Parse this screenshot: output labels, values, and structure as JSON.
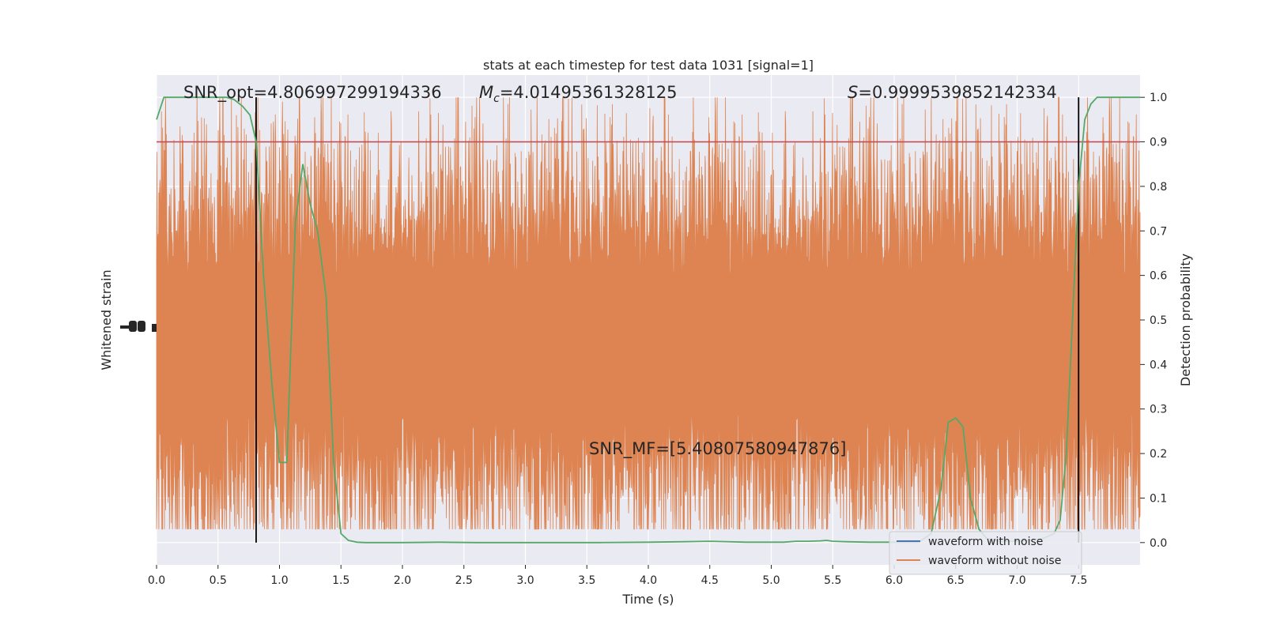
{
  "chart_data": {
    "type": "line",
    "title": "stats at each timestep for test data 1031 [signal=1]",
    "xlabel": "Time (s)",
    "ylabel_left": "Whitened strain",
    "ylabel_right": "Detection probability",
    "xlim": [
      0.0,
      8.0
    ],
    "ylim_right": [
      -0.05,
      1.05
    ],
    "x_ticks": [
      "0.0",
      "0.5",
      "1.0",
      "1.5",
      "2.0",
      "2.5",
      "3.0",
      "3.5",
      "4.0",
      "4.5",
      "5.0",
      "5.5",
      "6.0",
      "6.5",
      "7.0",
      "7.5"
    ],
    "x_tick_values": [
      0.0,
      0.5,
      1.0,
      1.5,
      2.0,
      2.5,
      3.0,
      3.5,
      4.0,
      4.5,
      5.0,
      5.5,
      6.0,
      6.5,
      7.0,
      7.5
    ],
    "y_ticks_right": [
      "0.0",
      "0.1",
      "0.2",
      "0.3",
      "0.4",
      "0.5",
      "0.6",
      "0.7",
      "0.8",
      "0.9",
      "1.0"
    ],
    "y_tick_values_right": [
      0.0,
      0.1,
      0.2,
      0.3,
      0.4,
      0.5,
      0.6,
      0.7,
      0.8,
      0.9,
      1.0
    ],
    "grid": true,
    "legend_position": "lower-right",
    "annotations": {
      "snr_opt": "SNR_opt=4.806997299194336",
      "mc_symbol": "M",
      "mc_subscript": "c",
      "mc_value": "=4.01495361328125",
      "s_symbol": "S",
      "s_value": "=0.9999539852142334",
      "snr_mf": "SNR_MF=[5.40807580947876]"
    },
    "threshold": 0.9,
    "vertical_lines": [
      0.81,
      7.5
    ],
    "series": [
      {
        "name": "waveform with noise",
        "color": "#4c72b0",
        "kind": "strain_noise"
      },
      {
        "name": "waveform without noise",
        "color": "#dd8452",
        "kind": "strain_noise",
        "center_probability": 0.44,
        "amplitude_probability": 0.45
      },
      {
        "name": "",
        "color": "#55a868",
        "kind": "detection_probability",
        "x": [
          0.0,
          0.06,
          0.13,
          0.2,
          0.28,
          0.35,
          0.42,
          0.5,
          0.57,
          0.63,
          0.7,
          0.76,
          0.81,
          0.87,
          0.94,
          1.0,
          1.06,
          1.1,
          1.13,
          1.19,
          1.25,
          1.31,
          1.38,
          1.44,
          1.5,
          1.56,
          1.63,
          1.7,
          1.8,
          2.0,
          2.3,
          2.6,
          3.0,
          3.3,
          3.6,
          4.0,
          4.3,
          4.5,
          4.8,
          5.0,
          5.1,
          5.2,
          5.3,
          5.4,
          5.45,
          5.5,
          5.6,
          5.8,
          6.0,
          6.2,
          6.3,
          6.38,
          6.44,
          6.5,
          6.56,
          6.62,
          6.69,
          6.75,
          6.82,
          6.9,
          7.0,
          7.1,
          7.2,
          7.3,
          7.35,
          7.4,
          7.45,
          7.5,
          7.55,
          7.6,
          7.65,
          7.7,
          8.0
        ],
        "values": [
          0.95,
          1.0,
          1.0,
          1.0,
          1.0,
          1.0,
          1.0,
          1.0,
          1.0,
          0.995,
          0.98,
          0.96,
          0.9,
          0.6,
          0.35,
          0.18,
          0.18,
          0.5,
          0.72,
          0.85,
          0.76,
          0.7,
          0.55,
          0.18,
          0.02,
          0.005,
          0.001,
          0.0,
          0.0,
          0.0,
          0.001,
          0.0,
          0.0,
          0.0,
          0.0,
          0.001,
          0.002,
          0.003,
          0.001,
          0.001,
          0.001,
          0.003,
          0.003,
          0.004,
          0.005,
          0.003,
          0.002,
          0.001,
          0.001,
          0.001,
          0.02,
          0.12,
          0.27,
          0.28,
          0.26,
          0.1,
          0.03,
          0.01,
          0.005,
          0.003,
          0.003,
          0.005,
          0.008,
          0.02,
          0.05,
          0.2,
          0.5,
          0.8,
          0.95,
          0.985,
          1.0,
          1.0,
          1.0
        ]
      }
    ]
  }
}
